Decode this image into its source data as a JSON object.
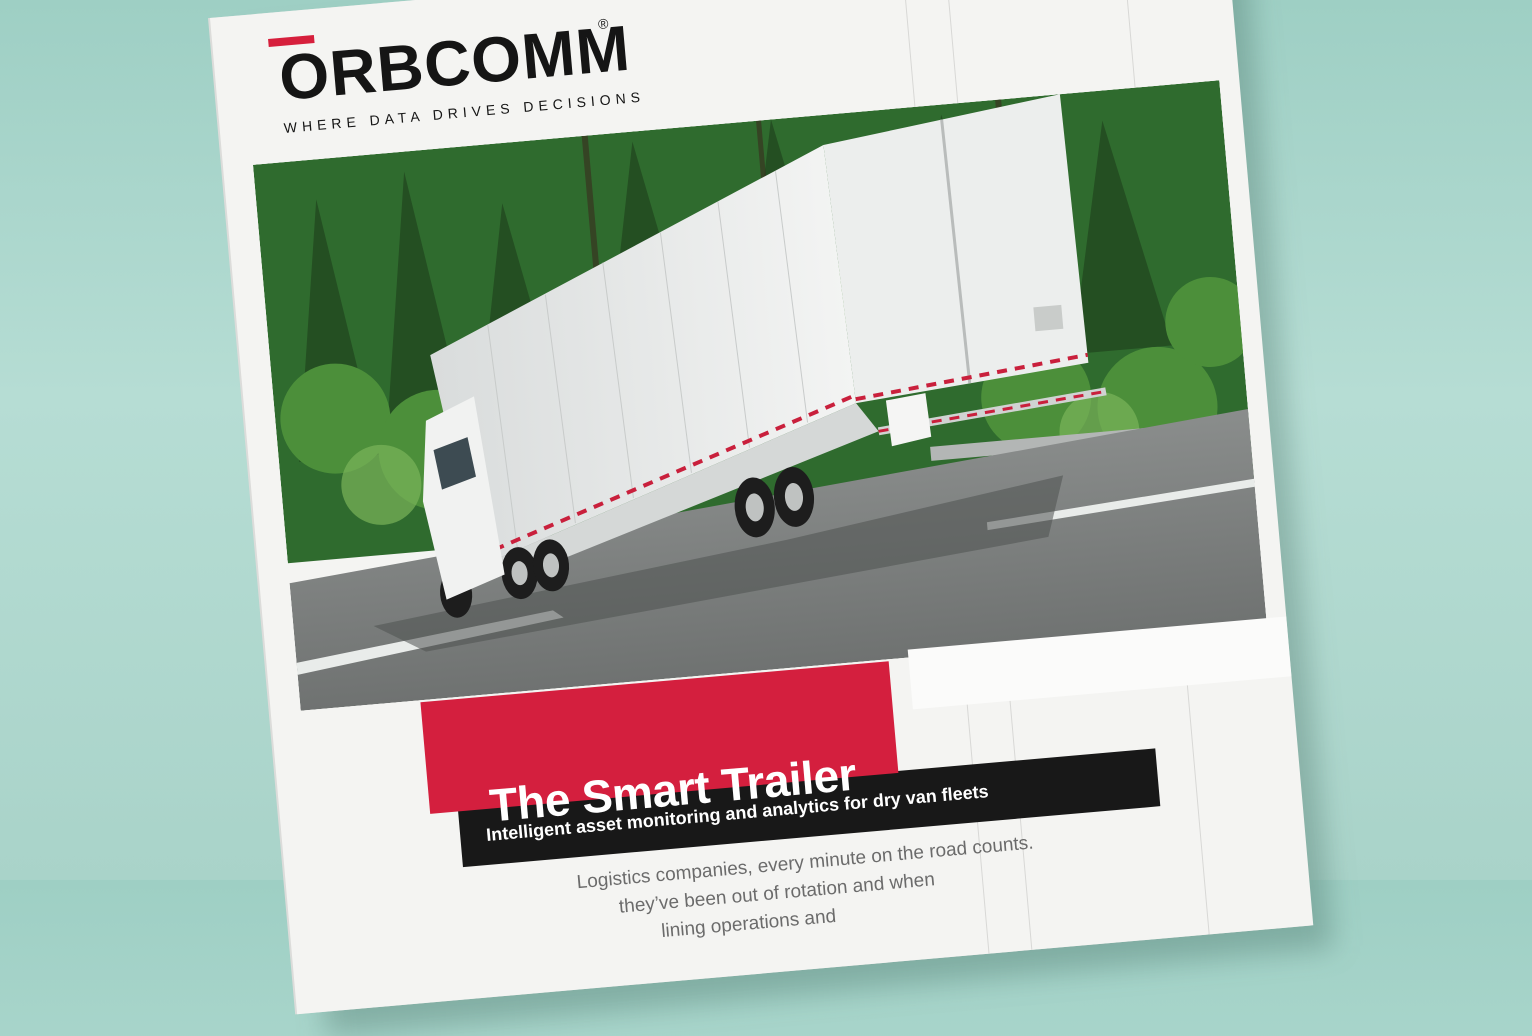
{
  "brochure": {
    "brand": "ORBCOMM",
    "registered_mark": "®",
    "tagline": "WHERE DATA DRIVES DECISIONS",
    "title": "The Smart Trailer",
    "subtitle": "Intelligent asset monitoring and analytics for dry van fleets",
    "body_lines": [
      "Logistics companies, every minute on the road counts.",
      "they’ve been out of rotation and when",
      "lining operations and"
    ]
  },
  "colors": {
    "background": "#a9d3c9",
    "paper": "#f4f4f2",
    "accent_red": "#d41f3e",
    "dark_band": "#181818",
    "forest": "#2f6b2e"
  },
  "photo": {
    "subject": "white semi-truck trailer on highway with forest background"
  }
}
